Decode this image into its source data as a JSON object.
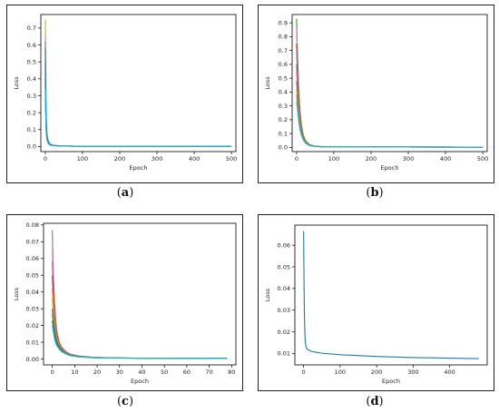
{
  "captions": {
    "a": {
      "open": "(",
      "letter": "a",
      "close": ")"
    },
    "b": {
      "open": "(",
      "letter": "b",
      "close": ")"
    },
    "c": {
      "open": "(",
      "letter": "c",
      "close": ")"
    },
    "d": {
      "open": "(",
      "letter": "d",
      "close": ")"
    }
  },
  "colors": {
    "palette": [
      "#1f77b4",
      "#ff7f0e",
      "#2ca02c",
      "#d62728",
      "#9467bd",
      "#8c564b",
      "#e377c2",
      "#7f7f7f",
      "#bcbd22",
      "#17becf"
    ]
  },
  "chart_data": [
    {
      "id": "a",
      "type": "line",
      "xlabel": "Epoch",
      "ylabel": "Loss",
      "xlim": [
        -12,
        512
      ],
      "ylim": [
        -0.03,
        0.78
      ],
      "xticks": [
        "0",
        "100",
        "200",
        "300",
        "400",
        "500"
      ],
      "xtick_values": [
        0,
        100,
        200,
        300,
        400,
        500
      ],
      "yticks": [
        "0.0",
        "0.1",
        "0.2",
        "0.3",
        "0.4",
        "0.5",
        "0.6",
        "0.7"
      ],
      "ytick_values": [
        0,
        0.1,
        0.2,
        0.3,
        0.4,
        0.5,
        0.6,
        0.7
      ],
      "grid": false,
      "series": [
        {
          "color": "#bcbd22",
          "x": [
            0,
            1,
            2,
            3,
            5,
            8,
            12,
            20,
            40,
            80,
            500
          ],
          "y": [
            0.75,
            0.42,
            0.24,
            0.14,
            0.07,
            0.035,
            0.017,
            0.008,
            0.004,
            0.002,
            0.001
          ]
        },
        {
          "color": "#e377c2",
          "x": [
            0,
            1,
            2,
            3,
            5,
            8,
            12,
            20,
            40,
            80,
            500
          ],
          "y": [
            0.66,
            0.37,
            0.21,
            0.12,
            0.06,
            0.03,
            0.015,
            0.007,
            0.003,
            0.002,
            0.001
          ]
        },
        {
          "color": "#9467bd",
          "x": [
            0,
            1,
            2,
            3,
            5,
            8,
            12,
            20,
            40,
            80,
            500
          ],
          "y": [
            0.62,
            0.34,
            0.19,
            0.11,
            0.055,
            0.028,
            0.014,
            0.007,
            0.003,
            0.002,
            0.001
          ]
        },
        {
          "color": "#ff7f0e",
          "x": [
            0,
            1,
            2,
            3,
            5,
            8,
            12,
            20,
            40,
            80,
            500
          ],
          "y": [
            0.5,
            0.28,
            0.16,
            0.09,
            0.046,
            0.024,
            0.012,
            0.006,
            0.003,
            0.002,
            0.001
          ]
        },
        {
          "color": "#2ca02c",
          "x": [
            0,
            1,
            2,
            3,
            5,
            8,
            12,
            20,
            40,
            80,
            500
          ],
          "y": [
            0.45,
            0.25,
            0.14,
            0.08,
            0.042,
            0.022,
            0.011,
            0.006,
            0.003,
            0.002,
            0.001
          ]
        },
        {
          "color": "#d62728",
          "x": [
            0,
            1,
            2,
            3,
            5,
            8,
            12,
            20,
            40,
            80,
            500
          ],
          "y": [
            0.4,
            0.22,
            0.12,
            0.07,
            0.038,
            0.02,
            0.01,
            0.005,
            0.003,
            0.002,
            0.001
          ]
        },
        {
          "color": "#1f77b4",
          "x": [
            0,
            1,
            2,
            3,
            5,
            8,
            12,
            20,
            40,
            80,
            500
          ],
          "y": [
            0.58,
            0.33,
            0.19,
            0.11,
            0.055,
            0.028,
            0.014,
            0.007,
            0.003,
            0.002,
            0.001
          ]
        },
        {
          "color": "#17becf",
          "x": [
            0,
            1,
            2,
            3,
            5,
            8,
            12,
            20,
            40,
            80,
            500
          ],
          "y": [
            0.35,
            0.19,
            0.11,
            0.065,
            0.035,
            0.018,
            0.009,
            0.005,
            0.003,
            0.002,
            0.001
          ]
        }
      ]
    },
    {
      "id": "b",
      "type": "line",
      "xlabel": "Epoch",
      "ylabel": "Loss",
      "xlim": [
        -12,
        512
      ],
      "ylim": [
        -0.03,
        0.96
      ],
      "xticks": [
        "0",
        "100",
        "200",
        "300",
        "400",
        "500"
      ],
      "xtick_values": [
        0,
        100,
        200,
        300,
        400,
        500
      ],
      "yticks": [
        "0.0",
        "0.1",
        "0.2",
        "0.3",
        "0.4",
        "0.5",
        "0.6",
        "0.7",
        "0.8",
        "0.9"
      ],
      "ytick_values": [
        0,
        0.1,
        0.2,
        0.3,
        0.4,
        0.5,
        0.6,
        0.7,
        0.8,
        0.9
      ],
      "grid": false,
      "series": [
        {
          "color": "#2ca02c",
          "x": [
            0,
            2,
            4,
            6,
            9,
            13,
            18,
            25,
            35,
            50,
            80,
            500
          ],
          "y": [
            0.93,
            0.72,
            0.55,
            0.41,
            0.27,
            0.16,
            0.09,
            0.045,
            0.02,
            0.009,
            0.004,
            0.002
          ]
        },
        {
          "color": "#e377c2",
          "x": [
            0,
            2,
            4,
            6,
            9,
            13,
            18,
            25,
            35,
            50,
            80,
            500
          ],
          "y": [
            0.86,
            0.66,
            0.5,
            0.37,
            0.24,
            0.14,
            0.08,
            0.04,
            0.018,
            0.008,
            0.004,
            0.002
          ]
        },
        {
          "color": "#d62728",
          "x": [
            0,
            2,
            4,
            6,
            9,
            13,
            18,
            25,
            35,
            50,
            80,
            500
          ],
          "y": [
            0.75,
            0.58,
            0.44,
            0.33,
            0.22,
            0.13,
            0.075,
            0.038,
            0.017,
            0.008,
            0.004,
            0.002
          ]
        },
        {
          "color": "#9467bd",
          "x": [
            0,
            2,
            4,
            6,
            9,
            13,
            18,
            25,
            35,
            50,
            80,
            500
          ],
          "y": [
            0.7,
            0.55,
            0.42,
            0.31,
            0.2,
            0.12,
            0.07,
            0.035,
            0.016,
            0.007,
            0.004,
            0.002
          ]
        },
        {
          "color": "#1f77b4",
          "x": [
            0,
            2,
            4,
            6,
            9,
            13,
            18,
            25,
            35,
            50,
            80,
            500
          ],
          "y": [
            0.6,
            0.48,
            0.37,
            0.28,
            0.18,
            0.11,
            0.065,
            0.033,
            0.015,
            0.007,
            0.004,
            0.002
          ]
        },
        {
          "color": "#ff7f0e",
          "x": [
            0,
            2,
            4,
            6,
            9,
            13,
            18,
            25,
            35,
            50,
            80,
            500
          ],
          "y": [
            0.55,
            0.45,
            0.36,
            0.28,
            0.19,
            0.12,
            0.07,
            0.036,
            0.016,
            0.007,
            0.004,
            0.002
          ]
        },
        {
          "color": "#8c564b",
          "x": [
            0,
            2,
            4,
            6,
            9,
            13,
            18,
            25,
            35,
            50,
            80,
            500
          ],
          "y": [
            0.48,
            0.4,
            0.32,
            0.25,
            0.17,
            0.11,
            0.065,
            0.034,
            0.015,
            0.007,
            0.004,
            0.002
          ]
        },
        {
          "color": "#bcbd22",
          "x": [
            0,
            2,
            4,
            6,
            9,
            13,
            18,
            25,
            35,
            50,
            80,
            500
          ],
          "y": [
            0.42,
            0.35,
            0.28,
            0.22,
            0.15,
            0.095,
            0.058,
            0.03,
            0.014,
            0.007,
            0.004,
            0.002
          ]
        },
        {
          "color": "#7f7f7f",
          "x": [
            0,
            2,
            4,
            6,
            9,
            13,
            18,
            25,
            35,
            50,
            80,
            500
          ],
          "y": [
            0.38,
            0.32,
            0.26,
            0.2,
            0.14,
            0.09,
            0.055,
            0.029,
            0.014,
            0.007,
            0.004,
            0.002
          ]
        },
        {
          "color": "#17becf",
          "x": [
            0,
            2,
            4,
            6,
            9,
            13,
            18,
            25,
            35,
            50,
            80,
            500
          ],
          "y": [
            0.33,
            0.28,
            0.23,
            0.18,
            0.13,
            0.085,
            0.052,
            0.028,
            0.013,
            0.006,
            0.004,
            0.002
          ]
        }
      ]
    },
    {
      "id": "c",
      "type": "line",
      "xlabel": "Epoch",
      "ylabel": "Loss",
      "xlim": [
        -3.9,
        81.9
      ],
      "ylim": [
        -0.0035,
        0.081
      ],
      "xticks": [
        "0",
        "10",
        "20",
        "30",
        "40",
        "50",
        "60",
        "70",
        "80"
      ],
      "xtick_values": [
        0,
        10,
        20,
        30,
        40,
        50,
        60,
        70,
        80
      ],
      "yticks": [
        "0.00",
        "0.01",
        "0.02",
        "0.03",
        "0.04",
        "0.05",
        "0.06",
        "0.07",
        "0.08"
      ],
      "ytick_values": [
        0,
        0.01,
        0.02,
        0.03,
        0.04,
        0.05,
        0.06,
        0.07,
        0.08
      ],
      "grid": false,
      "series": [
        {
          "color": "#7f7f7f",
          "x": [
            0,
            0.5,
            1,
            1.5,
            2,
            3,
            4,
            6,
            8,
            12,
            18,
            26,
            40,
            78
          ],
          "y": [
            0.077,
            0.05,
            0.034,
            0.024,
            0.017,
            0.0105,
            0.0075,
            0.0045,
            0.003,
            0.0018,
            0.0011,
            0.0007,
            0.0005,
            0.0004
          ]
        },
        {
          "color": "#e377c2",
          "x": [
            0,
            0.5,
            1,
            1.5,
            2,
            3,
            4,
            6,
            8,
            12,
            18,
            26,
            40,
            78
          ],
          "y": [
            0.066,
            0.045,
            0.031,
            0.022,
            0.016,
            0.01,
            0.007,
            0.0042,
            0.0028,
            0.0017,
            0.001,
            0.0007,
            0.0005,
            0.0004
          ]
        },
        {
          "color": "#9467bd",
          "x": [
            0,
            0.5,
            1,
            1.5,
            2,
            3,
            4,
            6,
            8,
            12,
            18,
            26,
            40,
            78
          ],
          "y": [
            0.058,
            0.04,
            0.028,
            0.02,
            0.015,
            0.0095,
            0.0068,
            0.0041,
            0.0027,
            0.0016,
            0.001,
            0.0007,
            0.0005,
            0.0004
          ]
        },
        {
          "color": "#d62728",
          "x": [
            0,
            0.5,
            1,
            1.5,
            2,
            3,
            4,
            6,
            8,
            12,
            18,
            26,
            40,
            78
          ],
          "y": [
            0.05,
            0.036,
            0.026,
            0.019,
            0.014,
            0.009,
            0.0064,
            0.0039,
            0.0026,
            0.0015,
            0.001,
            0.0007,
            0.0005,
            0.0004
          ]
        },
        {
          "color": "#ff7f0e",
          "x": [
            0,
            0.5,
            1,
            1.5,
            2,
            3,
            4,
            6,
            8,
            12,
            18,
            26,
            40,
            78
          ],
          "y": [
            0.042,
            0.031,
            0.023,
            0.017,
            0.013,
            0.0085,
            0.006,
            0.0037,
            0.0025,
            0.0015,
            0.001,
            0.0007,
            0.0005,
            0.0004
          ]
        },
        {
          "color": "#bcbd22",
          "x": [
            0,
            0.5,
            1,
            1.5,
            2,
            3,
            4,
            6,
            8,
            12,
            18,
            26,
            40,
            78
          ],
          "y": [
            0.036,
            0.027,
            0.02,
            0.015,
            0.012,
            0.008,
            0.0057,
            0.0035,
            0.0024,
            0.0014,
            0.0009,
            0.0006,
            0.0005,
            0.0004
          ]
        },
        {
          "color": "#8c564b",
          "x": [
            0,
            0.5,
            1,
            1.5,
            2,
            3,
            4,
            6,
            8,
            12,
            18,
            26,
            40,
            78
          ],
          "y": [
            0.03,
            0.023,
            0.018,
            0.014,
            0.011,
            0.0075,
            0.0055,
            0.0034,
            0.0023,
            0.0014,
            0.0009,
            0.0006,
            0.0005,
            0.0004
          ]
        },
        {
          "color": "#2ca02c",
          "x": [
            0,
            0.5,
            1,
            1.5,
            2,
            3,
            4,
            6,
            8,
            12,
            18,
            26,
            40,
            58,
            78
          ],
          "y": [
            0.027,
            0.021,
            0.016,
            0.013,
            0.01,
            0.007,
            0.0052,
            0.0033,
            0.0022,
            0.0013,
            0.0009,
            0.0006,
            0.0005,
            0.0004,
            0.0004
          ]
        },
        {
          "color": "#1f77b4",
          "x": [
            0,
            0.5,
            1,
            1.5,
            2,
            3,
            4,
            6,
            8,
            12,
            18,
            26,
            40,
            78
          ],
          "y": [
            0.023,
            0.018,
            0.014,
            0.011,
            0.009,
            0.0065,
            0.0049,
            0.0031,
            0.0021,
            0.0013,
            0.0008,
            0.0006,
            0.0005,
            0.0004
          ]
        },
        {
          "color": "#17becf",
          "x": [
            0,
            0.5,
            1,
            1.5,
            2,
            3,
            4,
            6,
            8,
            12,
            18,
            26,
            40,
            78
          ],
          "y": [
            0.02,
            0.016,
            0.012,
            0.0095,
            0.008,
            0.006,
            0.0045,
            0.003,
            0.002,
            0.0012,
            0.0008,
            0.0006,
            0.0005,
            0.0004
          ]
        }
      ]
    },
    {
      "id": "d",
      "type": "line",
      "xlabel": "Epoch",
      "ylabel": "Loss",
      "xlim": [
        -24,
        503
      ],
      "ylim": [
        0.0047,
        0.0693
      ],
      "xticks": [
        "0",
        "100",
        "200",
        "300",
        "400"
      ],
      "xtick_values": [
        0,
        100,
        200,
        300,
        400
      ],
      "yticks": [
        "0.01",
        "0.02",
        "0.03",
        "0.04",
        "0.05",
        "0.06"
      ],
      "ytick_values": [
        0.01,
        0.02,
        0.03,
        0.04,
        0.05,
        0.06
      ],
      "grid": false,
      "series": [
        {
          "color": "#1f77b4",
          "x": [
            0,
            1,
            2,
            3,
            4,
            5,
            7,
            10,
            15,
            25,
            50,
            100,
            200,
            300,
            400,
            480
          ],
          "y": [
            0.0665,
            0.045,
            0.03,
            0.022,
            0.017,
            0.0145,
            0.0128,
            0.012,
            0.0114,
            0.0108,
            0.0101,
            0.0094,
            0.0086,
            0.0081,
            0.0078,
            0.0076
          ]
        }
      ]
    }
  ]
}
